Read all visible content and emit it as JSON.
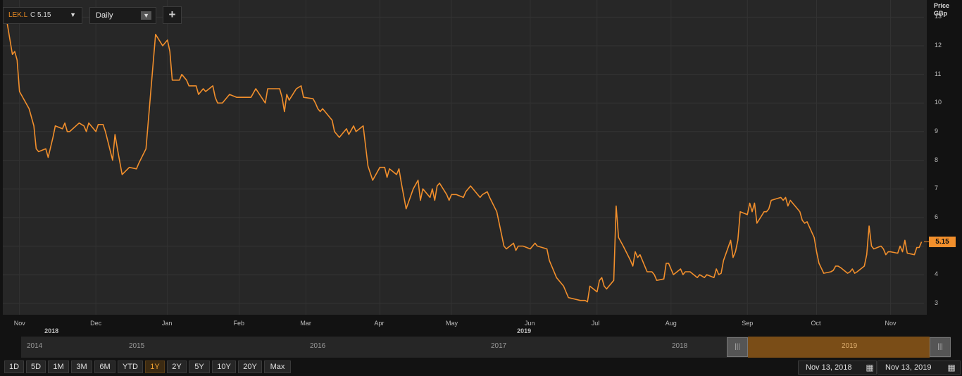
{
  "toolbar": {
    "symbol": "LEK.L",
    "close_label": "C 5.15",
    "interval": "Daily",
    "add_label": "+",
    "dropdown_glyph": "▼"
  },
  "axis": {
    "unit_line1": "Price",
    "unit_line2": "GBp",
    "yticks": [
      "13",
      "12",
      "11",
      "10",
      "9",
      "8",
      "7",
      "6",
      "5",
      "4",
      "3"
    ],
    "xticks": [
      "Nov",
      "Dec",
      "Jan",
      "Feb",
      "Mar",
      "Apr",
      "May",
      "Jun",
      "Jul",
      "Aug",
      "Sep",
      "Oct",
      "Nov"
    ],
    "years": [
      "2018",
      "2019"
    ]
  },
  "last_price": "5.15",
  "navigator": {
    "years": [
      "2014",
      "2015",
      "2016",
      "2017",
      "2018",
      "2019"
    ],
    "handle_glyph": "|||"
  },
  "ranges": [
    "1D",
    "5D",
    "1M",
    "3M",
    "6M",
    "YTD",
    "1Y",
    "2Y",
    "5Y",
    "10Y",
    "20Y",
    "Max"
  ],
  "active_range": "1Y",
  "date_from": "Nov 13, 2018",
  "date_to": "Nov 13, 2019",
  "colors": {
    "line": "#f28f2c",
    "background": "#272727",
    "accent": "#f28f2c"
  },
  "chart_data": {
    "type": "line",
    "title": "",
    "xlabel": "",
    "ylabel": "Price GBp",
    "ylim": [
      2.6,
      13.6
    ],
    "xlim": [
      "2018-10-25",
      "2019-11-15"
    ],
    "grid": true,
    "series": [
      {
        "values": [
          [
            "2018-10-26",
            13.2
          ],
          [
            "2018-10-29",
            11.7
          ],
          [
            "2018-10-30",
            11.8
          ],
          [
            "2018-10-31",
            11.5
          ],
          [
            "2018-11-01",
            10.4
          ],
          [
            "2018-11-05",
            9.8
          ],
          [
            "2018-11-07",
            9.2
          ],
          [
            "2018-11-08",
            8.4
          ],
          [
            "2018-11-09",
            8.3
          ],
          [
            "2018-11-12",
            8.4
          ],
          [
            "2018-11-13",
            8.1
          ],
          [
            "2018-11-15",
            8.8
          ],
          [
            "2018-11-16",
            9.2
          ],
          [
            "2018-11-19",
            9.1
          ],
          [
            "2018-11-20",
            9.3
          ],
          [
            "2018-11-21",
            9.0
          ],
          [
            "2018-11-22",
            9.0
          ],
          [
            "2018-11-26",
            9.3
          ],
          [
            "2018-11-28",
            9.2
          ],
          [
            "2018-11-29",
            9.0
          ],
          [
            "2018-11-30",
            9.3
          ],
          [
            "2018-12-03",
            9.0
          ],
          [
            "2018-12-04",
            9.25
          ],
          [
            "2018-12-06",
            9.25
          ],
          [
            "2018-12-07",
            9.0
          ],
          [
            "2018-12-10",
            8.0
          ],
          [
            "2018-12-11",
            8.9
          ],
          [
            "2018-12-12",
            8.4
          ],
          [
            "2018-12-14",
            7.5
          ],
          [
            "2018-12-17",
            7.75
          ],
          [
            "2018-12-20",
            7.7
          ],
          [
            "2018-12-21",
            7.9
          ],
          [
            "2018-12-24",
            8.4
          ],
          [
            "2018-12-28",
            12.4
          ],
          [
            "2018-12-31",
            12.0
          ],
          [
            "2019-01-02",
            12.2
          ],
          [
            "2019-01-03",
            11.8
          ],
          [
            "2019-01-04",
            10.8
          ],
          [
            "2019-01-07",
            10.8
          ],
          [
            "2019-01-08",
            11.0
          ],
          [
            "2019-01-10",
            10.8
          ],
          [
            "2019-01-11",
            10.6
          ],
          [
            "2019-01-14",
            10.6
          ],
          [
            "2019-01-15",
            10.3
          ],
          [
            "2019-01-17",
            10.5
          ],
          [
            "2019-01-18",
            10.4
          ],
          [
            "2019-01-21",
            10.6
          ],
          [
            "2019-01-22",
            10.2
          ],
          [
            "2019-01-23",
            10.0
          ],
          [
            "2019-01-25",
            10.0
          ],
          [
            "2019-01-28",
            10.3
          ],
          [
            "2019-01-31",
            10.2
          ],
          [
            "2019-02-04",
            10.2
          ],
          [
            "2019-02-06",
            10.2
          ],
          [
            "2019-02-08",
            10.5
          ],
          [
            "2019-02-12",
            10.0
          ],
          [
            "2019-02-13",
            10.5
          ],
          [
            "2019-02-18",
            10.5
          ],
          [
            "2019-02-19",
            10.2
          ],
          [
            "2019-02-20",
            9.7
          ],
          [
            "2019-02-21",
            10.3
          ],
          [
            "2019-02-22",
            10.1
          ],
          [
            "2019-02-25",
            10.5
          ],
          [
            "2019-02-27",
            10.6
          ],
          [
            "2019-02-28",
            10.2
          ],
          [
            "2019-03-04",
            10.15
          ],
          [
            "2019-03-05",
            10.0
          ],
          [
            "2019-03-06",
            9.8
          ],
          [
            "2019-03-07",
            9.7
          ],
          [
            "2019-03-08",
            9.8
          ],
          [
            "2019-03-12",
            9.4
          ],
          [
            "2019-03-13",
            9.0
          ],
          [
            "2019-03-15",
            8.8
          ],
          [
            "2019-03-18",
            9.1
          ],
          [
            "2019-03-19",
            8.9
          ],
          [
            "2019-03-21",
            9.2
          ],
          [
            "2019-03-22",
            9.0
          ],
          [
            "2019-03-25",
            9.2
          ],
          [
            "2019-03-27",
            7.8
          ],
          [
            "2019-03-29",
            7.3
          ],
          [
            "2019-04-01",
            7.75
          ],
          [
            "2019-04-03",
            7.75
          ],
          [
            "2019-04-04",
            7.4
          ],
          [
            "2019-04-05",
            7.7
          ],
          [
            "2019-04-08",
            7.5
          ],
          [
            "2019-04-09",
            7.7
          ],
          [
            "2019-04-10",
            7.2
          ],
          [
            "2019-04-12",
            6.3
          ],
          [
            "2019-04-15",
            7.0
          ],
          [
            "2019-04-17",
            7.3
          ],
          [
            "2019-04-18",
            6.6
          ],
          [
            "2019-04-19",
            7.0
          ],
          [
            "2019-04-22",
            6.7
          ],
          [
            "2019-04-23",
            7.0
          ],
          [
            "2019-04-24",
            6.6
          ],
          [
            "2019-04-25",
            7.1
          ],
          [
            "2019-04-26",
            7.2
          ],
          [
            "2019-04-29",
            6.8
          ],
          [
            "2019-04-30",
            6.6
          ],
          [
            "2019-05-01",
            6.8
          ],
          [
            "2019-05-03",
            6.8
          ],
          [
            "2019-05-06",
            6.7
          ],
          [
            "2019-05-07",
            6.9
          ],
          [
            "2019-05-09",
            7.1
          ],
          [
            "2019-05-13",
            6.7
          ],
          [
            "2019-05-14",
            6.8
          ],
          [
            "2019-05-16",
            6.9
          ],
          [
            "2019-05-17",
            6.7
          ],
          [
            "2019-05-20",
            6.2
          ],
          [
            "2019-05-22",
            5.4
          ],
          [
            "2019-05-23",
            5.0
          ],
          [
            "2019-05-24",
            4.9
          ],
          [
            "2019-05-27",
            5.1
          ],
          [
            "2019-05-28",
            4.85
          ],
          [
            "2019-05-29",
            5.0
          ],
          [
            "2019-05-31",
            5.0
          ],
          [
            "2019-06-03",
            4.9
          ],
          [
            "2019-06-05",
            5.1
          ],
          [
            "2019-06-06",
            5.0
          ],
          [
            "2019-06-10",
            4.9
          ],
          [
            "2019-06-11",
            4.5
          ],
          [
            "2019-06-12",
            4.3
          ],
          [
            "2019-06-14",
            3.9
          ],
          [
            "2019-06-17",
            3.6
          ],
          [
            "2019-06-18",
            3.4
          ],
          [
            "2019-06-19",
            3.2
          ],
          [
            "2019-06-24",
            3.1
          ],
          [
            "2019-06-25",
            3.1
          ],
          [
            "2019-06-26",
            3.1
          ],
          [
            "2019-06-27",
            3.05
          ],
          [
            "2019-06-28",
            3.6
          ],
          [
            "2019-07-01",
            3.4
          ],
          [
            "2019-07-02",
            3.8
          ],
          [
            "2019-07-03",
            3.9
          ],
          [
            "2019-07-04",
            3.6
          ],
          [
            "2019-07-05",
            3.5
          ],
          [
            "2019-07-08",
            3.8
          ],
          [
            "2019-07-09",
            6.4
          ],
          [
            "2019-07-10",
            5.3
          ],
          [
            "2019-07-12",
            5.0
          ],
          [
            "2019-07-15",
            4.5
          ],
          [
            "2019-07-16",
            4.3
          ],
          [
            "2019-07-17",
            4.8
          ],
          [
            "2019-07-18",
            4.6
          ],
          [
            "2019-07-19",
            4.7
          ],
          [
            "2019-07-22",
            4.1
          ],
          [
            "2019-07-24",
            4.1
          ],
          [
            "2019-07-25",
            4.0
          ],
          [
            "2019-07-26",
            3.8
          ],
          [
            "2019-07-29",
            3.85
          ],
          [
            "2019-07-30",
            4.4
          ],
          [
            "2019-07-31",
            4.4
          ],
          [
            "2019-08-01",
            4.2
          ],
          [
            "2019-08-02",
            4.0
          ],
          [
            "2019-08-05",
            4.2
          ],
          [
            "2019-08-06",
            4.0
          ],
          [
            "2019-08-07",
            4.1
          ],
          [
            "2019-08-09",
            4.1
          ],
          [
            "2019-08-12",
            3.9
          ],
          [
            "2019-08-13",
            4.0
          ],
          [
            "2019-08-15",
            3.9
          ],
          [
            "2019-08-16",
            4.0
          ],
          [
            "2019-08-19",
            3.9
          ],
          [
            "2019-08-20",
            4.2
          ],
          [
            "2019-08-21",
            4.0
          ],
          [
            "2019-08-22",
            4.05
          ],
          [
            "2019-08-23",
            4.5
          ],
          [
            "2019-08-26",
            5.2
          ],
          [
            "2019-08-27",
            4.6
          ],
          [
            "2019-08-28",
            4.8
          ],
          [
            "2019-08-29",
            5.2
          ],
          [
            "2019-08-30",
            6.2
          ],
          [
            "2019-09-02",
            6.1
          ],
          [
            "2019-09-03",
            6.5
          ],
          [
            "2019-09-04",
            6.2
          ],
          [
            "2019-09-05",
            6.5
          ],
          [
            "2019-09-06",
            5.8
          ],
          [
            "2019-09-09",
            6.2
          ],
          [
            "2019-09-10",
            6.2
          ],
          [
            "2019-09-11",
            6.3
          ],
          [
            "2019-09-12",
            6.6
          ],
          [
            "2019-09-16",
            6.7
          ],
          [
            "2019-09-17",
            6.6
          ],
          [
            "2019-09-18",
            6.7
          ],
          [
            "2019-09-19",
            6.4
          ],
          [
            "2019-09-20",
            6.6
          ],
          [
            "2019-09-23",
            6.3
          ],
          [
            "2019-09-24",
            6.2
          ],
          [
            "2019-09-25",
            5.9
          ],
          [
            "2019-09-26",
            5.8
          ],
          [
            "2019-09-27",
            5.85
          ],
          [
            "2019-09-30",
            5.3
          ],
          [
            "2019-10-01",
            4.8
          ],
          [
            "2019-10-02",
            4.4
          ],
          [
            "2019-10-04",
            4.05
          ],
          [
            "2019-10-07",
            4.1
          ],
          [
            "2019-10-08",
            4.15
          ],
          [
            "2019-10-09",
            4.3
          ],
          [
            "2019-10-10",
            4.3
          ],
          [
            "2019-10-11",
            4.25
          ],
          [
            "2019-10-14",
            4.05
          ],
          [
            "2019-10-15",
            4.1
          ],
          [
            "2019-10-16",
            4.2
          ],
          [
            "2019-10-17",
            4.05
          ],
          [
            "2019-10-18",
            4.1
          ],
          [
            "2019-10-21",
            4.3
          ],
          [
            "2019-10-22",
            4.7
          ],
          [
            "2019-10-23",
            5.7
          ],
          [
            "2019-10-24",
            5.0
          ],
          [
            "2019-10-25",
            4.9
          ],
          [
            "2019-10-28",
            5.0
          ],
          [
            "2019-10-29",
            4.9
          ],
          [
            "2019-10-30",
            4.7
          ],
          [
            "2019-10-31",
            4.8
          ],
          [
            "2019-11-01",
            4.8
          ],
          [
            "2019-11-04",
            4.75
          ],
          [
            "2019-11-05",
            5.0
          ],
          [
            "2019-11-06",
            4.8
          ],
          [
            "2019-11-07",
            5.2
          ],
          [
            "2019-11-08",
            4.75
          ],
          [
            "2019-11-11",
            4.7
          ],
          [
            "2019-11-12",
            4.95
          ],
          [
            "2019-11-13",
            4.95
          ],
          [
            "2019-11-14",
            5.15
          ]
        ]
      }
    ]
  }
}
